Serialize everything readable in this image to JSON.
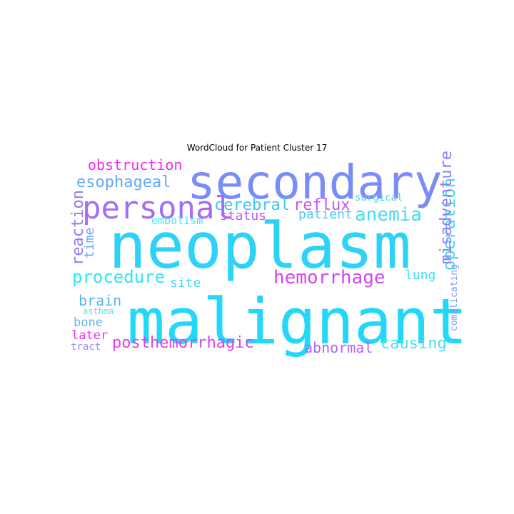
{
  "chart_data": {
    "type": "wordcloud",
    "title": "WordCloud for Patient Cluster 17",
    "words": [
      {
        "text": "neoplasm",
        "color": "#2fd2f7"
      },
      {
        "text": "malignant",
        "color": "#22d8f8"
      },
      {
        "text": "secondary",
        "color": "#7a8cf5"
      },
      {
        "text": "personal",
        "color": "#a56ef2"
      },
      {
        "text": "hemorrhage",
        "color": "#d248f0"
      },
      {
        "text": "anemia",
        "color": "#3ee0f5"
      },
      {
        "text": "procedure",
        "color": "#2ee6f4"
      },
      {
        "text": "posthemorrhagic",
        "color": "#dd40f2"
      },
      {
        "text": "esophageal",
        "color": "#63aaf6"
      },
      {
        "text": "cerebral",
        "color": "#3fc4f6"
      },
      {
        "text": "reflux",
        "color": "#c655f3"
      },
      {
        "text": "operation",
        "color": "#47d6f6"
      },
      {
        "text": "causing",
        "color": "#45e4f4"
      },
      {
        "text": "obstruction",
        "color": "#f02cf0"
      },
      {
        "text": "abnormal",
        "color": "#b062f3"
      },
      {
        "text": "misadventure",
        "color": "#8b7ff4"
      },
      {
        "text": "reaction",
        "color": "#8e7ff4"
      },
      {
        "text": "brain",
        "color": "#52b6f6"
      },
      {
        "text": "patient",
        "color": "#4ec8f6"
      },
      {
        "text": "status",
        "color": "#c158f2"
      },
      {
        "text": "time",
        "color": "#6ea6f5"
      },
      {
        "text": "site",
        "color": "#45d8f6"
      },
      {
        "text": "lung",
        "color": "#3fe0f5"
      },
      {
        "text": "bone",
        "color": "#5fb3f6"
      },
      {
        "text": "later",
        "color": "#f030f0"
      },
      {
        "text": "embolism",
        "color": "#3ce8f5"
      },
      {
        "text": "surgical",
        "color": "#4ad7f6"
      },
      {
        "text": "complicating",
        "color": "#7e9cf5"
      },
      {
        "text": "asthma",
        "color": "#52e8f4"
      },
      {
        "text": "tract",
        "color": "#9a8cf4"
      }
    ]
  }
}
